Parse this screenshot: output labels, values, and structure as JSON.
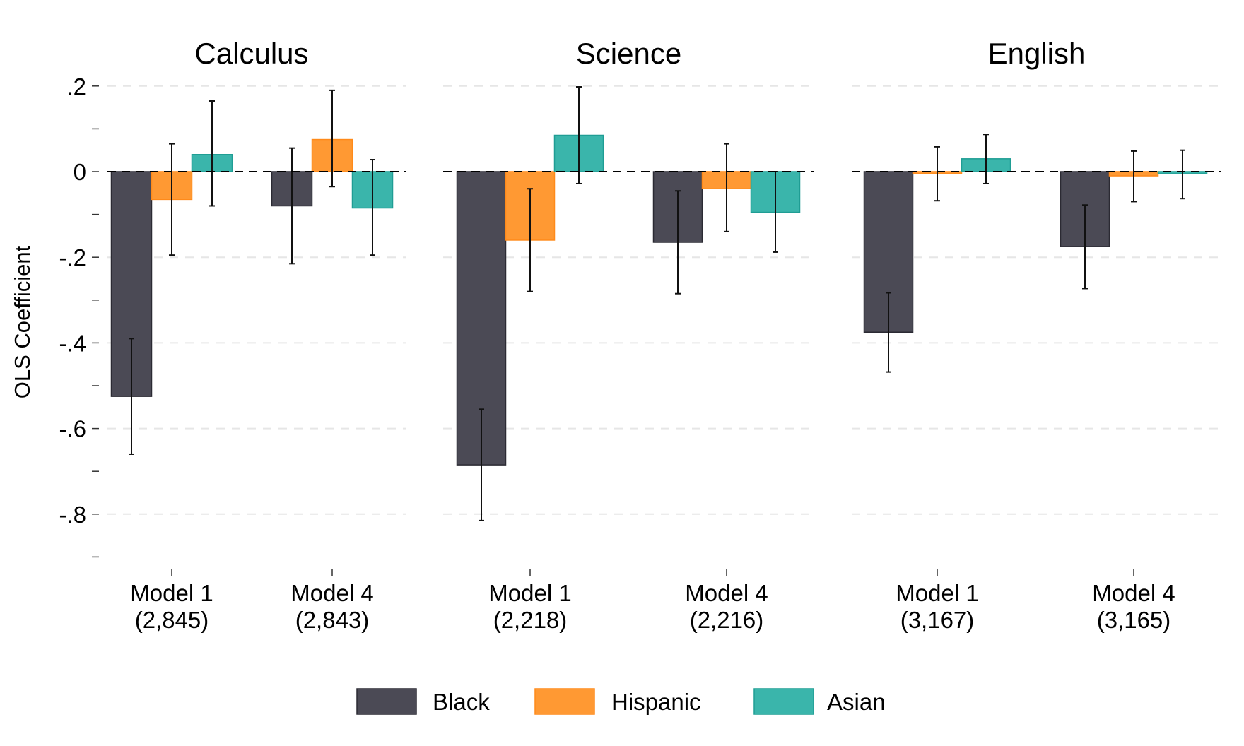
{
  "chart_data": {
    "type": "bar",
    "ylabel": "OLS Coefficient",
    "ylim": [
      -0.9,
      0.2
    ],
    "yticks": [
      0.2,
      0,
      -0.2,
      -0.4,
      -0.6,
      -0.8
    ],
    "ytick_labels": [
      ".2",
      "0",
      "-.2",
      "-.4",
      "-.6",
      "-.8"
    ],
    "grid": "horizontal dashed",
    "legend_position": "bottom",
    "series_colors": {
      "Black": "#4b4a55",
      "Hispanic": "#ff9933",
      "Asian": "#3ab5ab"
    },
    "legend": [
      "Black",
      "Hispanic",
      "Asian"
    ],
    "panels": [
      {
        "title": "Calculus",
        "groups": [
          {
            "label": "Model 1",
            "n": "(2,845)",
            "bars": [
              {
                "series": "Black",
                "value": -0.525,
                "ci": [
                  -0.66,
                  -0.39
                ]
              },
              {
                "series": "Hispanic",
                "value": -0.065,
                "ci": [
                  -0.195,
                  0.065
                ]
              },
              {
                "series": "Asian",
                "value": 0.04,
                "ci": [
                  -0.08,
                  0.165
                ]
              }
            ]
          },
          {
            "label": "Model 4",
            "n": "(2,843)",
            "bars": [
              {
                "series": "Black",
                "value": -0.08,
                "ci": [
                  -0.215,
                  0.055
                ]
              },
              {
                "series": "Hispanic",
                "value": 0.075,
                "ci": [
                  -0.035,
                  0.19
                ]
              },
              {
                "series": "Asian",
                "value": -0.085,
                "ci": [
                  -0.195,
                  0.028
                ]
              }
            ]
          }
        ]
      },
      {
        "title": "Science",
        "groups": [
          {
            "label": "Model 1",
            "n": "(2,218)",
            "bars": [
              {
                "series": "Black",
                "value": -0.685,
                "ci": [
                  -0.815,
                  -0.555
                ]
              },
              {
                "series": "Hispanic",
                "value": -0.16,
                "ci": [
                  -0.28,
                  -0.04
                ]
              },
              {
                "series": "Asian",
                "value": 0.085,
                "ci": [
                  -0.028,
                  0.198
                ]
              }
            ]
          },
          {
            "label": "Model 4",
            "n": "(2,216)",
            "bars": [
              {
                "series": "Black",
                "value": -0.165,
                "ci": [
                  -0.285,
                  -0.045
                ]
              },
              {
                "series": "Hispanic",
                "value": -0.04,
                "ci": [
                  -0.14,
                  0.065
                ]
              },
              {
                "series": "Asian",
                "value": -0.095,
                "ci": [
                  -0.188,
                  0.0
                ]
              }
            ]
          }
        ]
      },
      {
        "title": "English",
        "groups": [
          {
            "label": "Model 1",
            "n": "(3,167)",
            "bars": [
              {
                "series": "Black",
                "value": -0.375,
                "ci": [
                  -0.468,
                  -0.283
                ]
              },
              {
                "series": "Hispanic",
                "value": -0.005,
                "ci": [
                  -0.068,
                  0.058
                ]
              },
              {
                "series": "Asian",
                "value": 0.03,
                "ci": [
                  -0.028,
                  0.087
                ]
              }
            ]
          },
          {
            "label": "Model 4",
            "n": "(3,165)",
            "bars": [
              {
                "series": "Black",
                "value": -0.175,
                "ci": [
                  -0.273,
                  -0.078
                ]
              },
              {
                "series": "Hispanic",
                "value": -0.01,
                "ci": [
                  -0.07,
                  0.048
                ]
              },
              {
                "series": "Asian",
                "value": -0.005,
                "ci": [
                  -0.063,
                  0.05
                ]
              }
            ]
          }
        ]
      }
    ]
  }
}
